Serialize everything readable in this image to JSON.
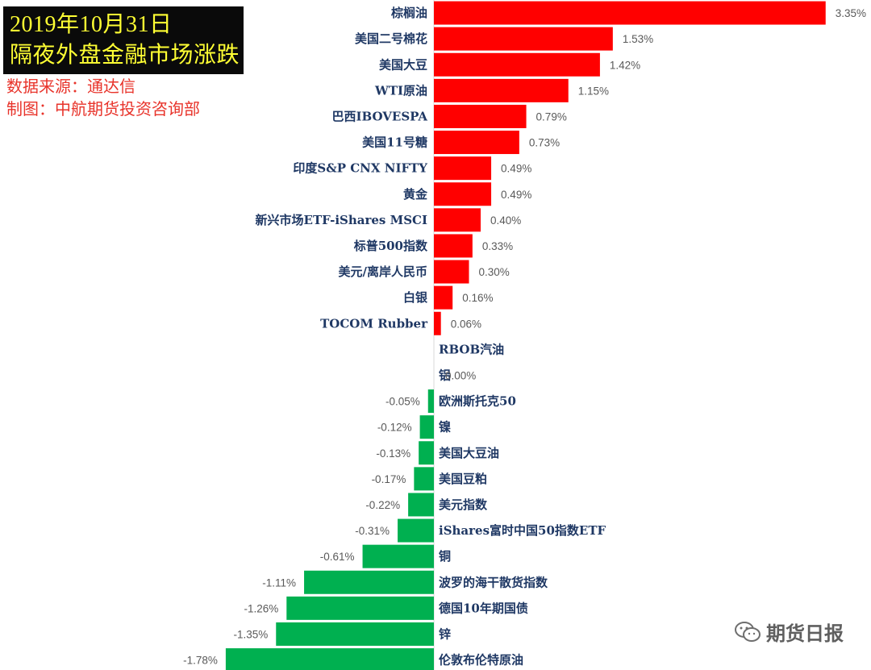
{
  "header": {
    "title_line1": "2019年10月31日",
    "title_line2": "隔夜外盘金融市场涨跌",
    "source": "数据来源：通达信",
    "maker": "制图：中航期货投资咨询部"
  },
  "watermark": {
    "text": "期货日报",
    "icon": "wechat-logo"
  },
  "colors": {
    "positive": "#ff0000",
    "negative": "#00b050",
    "axis": "#d9d9d9"
  },
  "chart_data": {
    "type": "bar",
    "orientation": "horizontal",
    "categories": [
      "棕榈油",
      "美国二号棉花",
      "美国大豆",
      "WTI原油",
      "巴西IBOVESPA",
      "美国11号糖",
      "印度S&P CNX NIFTY",
      "黄金",
      "新兴市场ETF-iShares MSCI",
      "标普500指数",
      "美元/离岸人民币",
      "白银",
      "TOCOM Rubber",
      "RBOB汽油",
      "铝",
      "欧洲斯托克50",
      "镍",
      "美国大豆油",
      "美国豆粕",
      "美元指数",
      "iShares富时中国50指数ETF",
      "铜",
      "波罗的海干散货指数",
      "德国10年期国债",
      "锌",
      "伦敦布伦特原油"
    ],
    "values": [
      3.35,
      1.53,
      1.42,
      1.15,
      0.79,
      0.73,
      0.49,
      0.49,
      0.4,
      0.33,
      0.3,
      0.16,
      0.06,
      0.0,
      0.0,
      -0.05,
      -0.12,
      -0.13,
      -0.17,
      -0.22,
      -0.31,
      -0.61,
      -1.11,
      -1.26,
      -1.35,
      -1.78
    ],
    "labels": [
      "3.35%",
      "1.53%",
      "1.42%",
      "1.15%",
      "0.79%",
      "0.73%",
      "0.49%",
      "0.49%",
      "0.40%",
      "0.33%",
      "0.30%",
      "0.16%",
      "0.06%",
      "",
      "0.00%",
      "-0.05%",
      "-0.12%",
      "-0.13%",
      "-0.17%",
      "-0.22%",
      "-0.31%",
      "-0.61%",
      "-1.11%",
      "-1.26%",
      "-1.35%",
      "-1.78%"
    ],
    "unit": "%",
    "grid": false,
    "legend": "none"
  }
}
